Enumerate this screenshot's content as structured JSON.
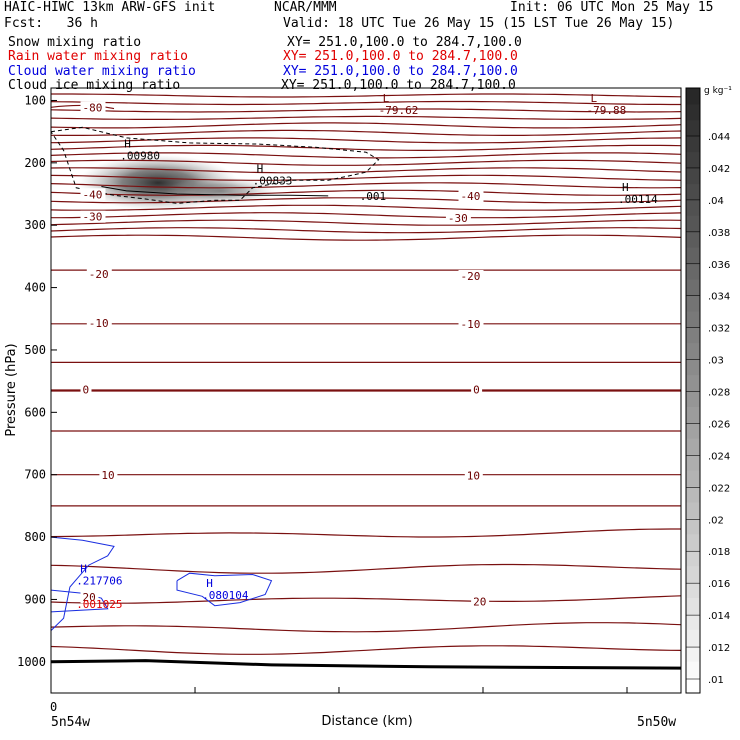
{
  "header": {
    "title": "HAIC-HIWC 13km ARW-GFS init",
    "org": "NCAR/MMM",
    "init": "Init: 06 UTC Mon 25 May 15",
    "fcst": "Fcst:   36 h",
    "valid": "Valid: 18 UTC Tue 26 May 15 (15 LST Tue 26 May 15)",
    "fields": [
      {
        "name": "Snow mixing ratio",
        "xy": "XY= 251.0,100.0 to 284.7,100.0",
        "color": "#000000"
      },
      {
        "name": "Rain water mixing ratio",
        "xy": "XY= 251.0,100.0 to 284.7,100.0",
        "color": "#e00000"
      },
      {
        "name": "Cloud water mixing ratio",
        "xy": "XY= 251.0,100.0 to 284.7,100.0",
        "color": "#0000dd"
      },
      {
        "name": "Cloud ice mixing ratio",
        "xy": "XY= 251.0,100.0 to 284.7,100.0",
        "color": "#000000"
      }
    ]
  },
  "chart_data": {
    "type": "heatmap",
    "xlabel": "Distance (km)",
    "ylabel": "Pressure (hPa)",
    "x_ticks": [
      "0"
    ],
    "x_end_labels": [
      "5n54w",
      "5n50w"
    ],
    "y_range": [
      1050,
      80
    ],
    "y_ticks": [
      100,
      200,
      300,
      400,
      500,
      600,
      700,
      800,
      900,
      1000
    ],
    "colorbar": {
      "unit": "g kg⁻¹",
      "ticks": [
        ".01",
        ".012",
        ".014",
        ".016",
        ".018",
        ".02",
        ".022",
        ".024",
        ".026",
        ".028",
        ".03",
        ".032",
        ".034",
        ".036",
        ".038",
        ".04",
        ".042",
        ".044"
      ]
    },
    "temperature_contour_labels": [
      {
        "text": "-80",
        "x": 0.05,
        "p": 113
      },
      {
        "text": "-40",
        "x": 0.05,
        "p": 252
      },
      {
        "text": "-30",
        "x": 0.05,
        "p": 288
      },
      {
        "text": "-20",
        "x": 0.06,
        "p": 380
      },
      {
        "text": "-10",
        "x": 0.06,
        "p": 458
      },
      {
        "text": "0",
        "x": 0.05,
        "p": 565
      },
      {
        "text": "10",
        "x": 0.08,
        "p": 702
      },
      {
        "text": "20",
        "x": 0.05,
        "p": 898
      },
      {
        "text": "-40",
        "x": 0.65,
        "p": 255
      },
      {
        "text": "-30",
        "x": 0.63,
        "p": 290
      },
      {
        "text": "-20",
        "x": 0.65,
        "p": 383
      },
      {
        "text": "-10",
        "x": 0.65,
        "p": 460
      },
      {
        "text": "0",
        "x": 0.67,
        "p": 565
      },
      {
        "text": "10",
        "x": 0.66,
        "p": 703
      },
      {
        "text": "20",
        "x": 0.67,
        "p": 905
      }
    ],
    "extrema": [
      {
        "mark": "L",
        "value": "-79.62",
        "x": 0.52,
        "p": 107,
        "color": "#6b0000"
      },
      {
        "mark": "L",
        "value": "-79.88",
        "x": 0.85,
        "p": 107,
        "color": "#6b0000"
      },
      {
        "mark": "H",
        "value": ".00980",
        "x": 0.11,
        "p": 180,
        "color": "#000000"
      },
      {
        "mark": "H",
        "value": ".00833",
        "x": 0.32,
        "p": 220,
        "color": "#000000"
      },
      {
        "mark": "H",
        "value": ".00114",
        "x": 0.9,
        "p": 250,
        "color": "#000000"
      },
      {
        "mark": "H",
        "value": ".217706",
        "x": 0.04,
        "p": 862,
        "color": "#0000dd"
      },
      {
        "mark": "H",
        "value": ".080104",
        "x": 0.24,
        "p": 885,
        "color": "#0000dd"
      }
    ],
    "contour_labels": [
      {
        "text": ".001",
        "x": 0.49,
        "p": 253,
        "color": "#000000"
      },
      {
        "text": ".001025",
        "x": 0.04,
        "p": 907,
        "color": "#e00000"
      }
    ],
    "surface_pressure": [
      [
        0,
        1000
      ],
      [
        0.15,
        998
      ],
      [
        0.35,
        1005
      ],
      [
        0.6,
        1008
      ],
      [
        1,
        1010
      ]
    ]
  }
}
